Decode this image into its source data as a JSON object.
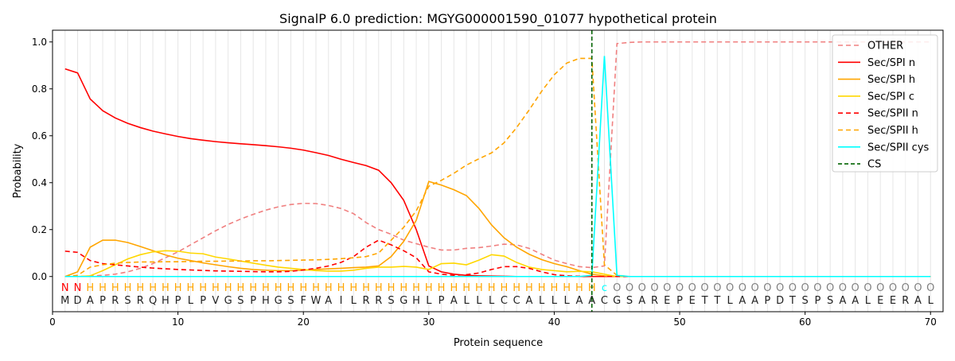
{
  "chart_data": {
    "type": "line",
    "title": "SignalP 6.0 prediction: MGYG000001590_01077 hypothetical protein",
    "xlabel": "Protein sequence",
    "ylabel": "Probability",
    "xlim": [
      0,
      71
    ],
    "ylim": [
      -0.15,
      1.05
    ],
    "xticks": [
      0,
      10,
      20,
      30,
      40,
      50,
      60,
      70
    ],
    "yticks": [
      0.0,
      0.2,
      0.4,
      0.6,
      0.8,
      1.0
    ],
    "ytick_labels": [
      "0.0",
      "0.2",
      "0.4",
      "0.6",
      "0.8",
      "1.0"
    ],
    "grid": "vertical lines at each residue",
    "legend_position": "top-right",
    "sequence": [
      "M",
      "D",
      "A",
      "P",
      "R",
      "S",
      "R",
      "Q",
      "H",
      "P",
      "L",
      "P",
      "V",
      "G",
      "S",
      "P",
      "H",
      "G",
      "S",
      "F",
      "W",
      "A",
      "I",
      "L",
      "R",
      "R",
      "S",
      "G",
      "H",
      "L",
      "P",
      "A",
      "L",
      "L",
      "L",
      "C",
      "C",
      "A",
      "L",
      "L",
      "L",
      "A",
      "A",
      "C",
      "G",
      "S",
      "A",
      "R",
      "E",
      "P",
      "E",
      "T",
      "T",
      "L",
      "A",
      "A",
      "P",
      "D",
      "T",
      "S",
      "P",
      "S",
      "A",
      "A",
      "L",
      "E",
      "E",
      "R",
      "A",
      "L"
    ],
    "labels": [
      "N",
      "N",
      "H",
      "H",
      "H",
      "H",
      "H",
      "H",
      "H",
      "H",
      "H",
      "H",
      "H",
      "H",
      "H",
      "H",
      "H",
      "H",
      "H",
      "H",
      "H",
      "H",
      "H",
      "H",
      "H",
      "H",
      "H",
      "H",
      "H",
      "H",
      "H",
      "H",
      "H",
      "H",
      "H",
      "H",
      "H",
      "H",
      "H",
      "H",
      "H",
      "H",
      "H",
      "c",
      "O",
      "O",
      "O",
      "O",
      "O",
      "O",
      "O",
      "O",
      "O",
      "O",
      "O",
      "O",
      "O",
      "O",
      "O",
      "O",
      "O",
      "O",
      "O",
      "O",
      "O",
      "O",
      "O",
      "O",
      "O",
      "O"
    ],
    "label_colors": {
      "N": "#ff0000",
      "H": "#ffa500",
      "c": "#00ffff",
      "O": "#808080"
    },
    "cs_position": 43,
    "series": [
      {
        "name": "OTHER",
        "color": "#f08080",
        "dash": "6,4",
        "values": [
          0,
          0,
          0.002,
          0.005,
          0.01,
          0.02,
          0.035,
          0.055,
          0.08,
          0.105,
          0.135,
          0.165,
          0.195,
          0.222,
          0.245,
          0.265,
          0.283,
          0.297,
          0.307,
          0.312,
          0.311,
          0.303,
          0.29,
          0.268,
          0.23,
          0.2,
          0.18,
          0.155,
          0.14,
          0.125,
          0.113,
          0.113,
          0.12,
          0.123,
          0.13,
          0.138,
          0.135,
          0.12,
          0.095,
          0.07,
          0.055,
          0.042,
          0.038,
          0.045,
          0.993,
          0.998,
          1,
          1,
          1,
          1,
          1,
          1,
          1,
          1,
          1,
          1,
          1,
          1,
          1,
          1,
          1,
          1,
          1,
          1,
          1,
          1,
          1,
          1,
          1,
          1
        ]
      },
      {
        "name": "Sec/SPI n",
        "color": "#ff0000",
        "dash": "",
        "values": [
          0.885,
          0.868,
          0.757,
          0.707,
          0.676,
          0.653,
          0.635,
          0.62,
          0.608,
          0.597,
          0.588,
          0.581,
          0.575,
          0.57,
          0.566,
          0.562,
          0.558,
          0.553,
          0.547,
          0.539,
          0.528,
          0.516,
          0.5,
          0.486,
          0.473,
          0.453,
          0.4,
          0.325,
          0.2,
          0.045,
          0.02,
          0.01,
          0.005,
          0.003,
          0.002,
          0.001,
          0,
          0,
          0,
          0,
          0,
          0,
          0,
          0,
          0,
          0,
          0,
          0,
          0,
          0,
          0,
          0,
          0,
          0,
          0,
          0,
          0,
          0,
          0,
          0,
          0,
          0,
          0,
          0,
          0,
          0,
          0,
          0,
          0,
          0
        ]
      },
      {
        "name": "Sec/SPI h",
        "color": "#ffa500",
        "dash": "",
        "values": [
          0,
          0.02,
          0.125,
          0.155,
          0.155,
          0.145,
          0.128,
          0.11,
          0.092,
          0.078,
          0.068,
          0.058,
          0.05,
          0.042,
          0.035,
          0.03,
          0.027,
          0.025,
          0.025,
          0.027,
          0.03,
          0.033,
          0.035,
          0.038,
          0.04,
          0.045,
          0.085,
          0.15,
          0.24,
          0.405,
          0.39,
          0.37,
          0.345,
          0.29,
          0.22,
          0.165,
          0.125,
          0.095,
          0.072,
          0.055,
          0.042,
          0.025,
          0.01,
          0.003,
          0,
          0,
          0,
          0,
          0,
          0,
          0,
          0,
          0,
          0,
          0,
          0,
          0,
          0,
          0,
          0,
          0,
          0,
          0,
          0,
          0,
          0,
          0,
          0,
          0,
          0
        ]
      },
      {
        "name": "Sec/SPI c",
        "color": "#ffd700",
        "dash": "",
        "values": [
          0,
          0,
          0.003,
          0.025,
          0.05,
          0.075,
          0.093,
          0.105,
          0.11,
          0.108,
          0.1,
          0.097,
          0.083,
          0.075,
          0.066,
          0.057,
          0.048,
          0.04,
          0.035,
          0.03,
          0.025,
          0.023,
          0.023,
          0.027,
          0.035,
          0.04,
          0.04,
          0.043,
          0.04,
          0.03,
          0.055,
          0.057,
          0.05,
          0.07,
          0.093,
          0.087,
          0.06,
          0.04,
          0.03,
          0.025,
          0.02,
          0.022,
          0.02,
          0.01,
          0,
          0,
          0,
          0,
          0,
          0,
          0,
          0,
          0,
          0,
          0,
          0,
          0,
          0,
          0,
          0,
          0,
          0,
          0,
          0,
          0,
          0,
          0,
          0,
          0,
          0
        ]
      },
      {
        "name": "Sec/SPII n",
        "color": "#ff0000",
        "dash": "6,4",
        "values": [
          0.108,
          0.103,
          0.068,
          0.055,
          0.05,
          0.045,
          0.04,
          0.036,
          0.033,
          0.03,
          0.028,
          0.026,
          0.024,
          0.023,
          0.022,
          0.021,
          0.02,
          0.02,
          0.022,
          0.028,
          0.035,
          0.045,
          0.06,
          0.085,
          0.125,
          0.155,
          0.135,
          0.11,
          0.08,
          0.02,
          0.01,
          0.005,
          0.008,
          0.015,
          0.03,
          0.042,
          0.042,
          0.035,
          0.02,
          0.008,
          0.003,
          0.001,
          0,
          0,
          0,
          0,
          0,
          0,
          0,
          0,
          0,
          0,
          0,
          0,
          0,
          0,
          0,
          0,
          0,
          0,
          0,
          0,
          0,
          0,
          0,
          0,
          0,
          0,
          0,
          0
        ]
      },
      {
        "name": "Sec/SPII h",
        "color": "#ffa500",
        "dash": "6,4",
        "values": [
          0,
          0.005,
          0.04,
          0.05,
          0.057,
          0.06,
          0.062,
          0.062,
          0.063,
          0.063,
          0.064,
          0.065,
          0.065,
          0.066,
          0.066,
          0.067,
          0.067,
          0.068,
          0.069,
          0.07,
          0.071,
          0.073,
          0.076,
          0.08,
          0.085,
          0.1,
          0.155,
          0.21,
          0.28,
          0.385,
          0.41,
          0.44,
          0.475,
          0.502,
          0.527,
          0.57,
          0.635,
          0.71,
          0.79,
          0.86,
          0.91,
          0.93,
          0.93,
          0.05,
          0.005,
          0,
          0,
          0,
          0,
          0,
          0,
          0,
          0,
          0,
          0,
          0,
          0,
          0,
          0,
          0,
          0,
          0,
          0,
          0,
          0,
          0,
          0,
          0,
          0,
          0
        ]
      },
      {
        "name": "Sec/SPII cys",
        "color": "#00ffff",
        "dash": "",
        "values": [
          0,
          0,
          0,
          0,
          0,
          0,
          0,
          0,
          0,
          0,
          0,
          0,
          0,
          0,
          0,
          0,
          0,
          0,
          0,
          0,
          0,
          0,
          0,
          0,
          0,
          0,
          0,
          0,
          0,
          0,
          0,
          0,
          0,
          0,
          0,
          0,
          0,
          0,
          0,
          0,
          0,
          0,
          0.005,
          0.94,
          0.005,
          0,
          0,
          0,
          0,
          0,
          0,
          0,
          0,
          0,
          0,
          0,
          0,
          0,
          0,
          0,
          0,
          0,
          0,
          0,
          0,
          0,
          0,
          0,
          0,
          0
        ]
      }
    ],
    "cs_legend": {
      "name": "CS",
      "color": "#006400"
    }
  }
}
